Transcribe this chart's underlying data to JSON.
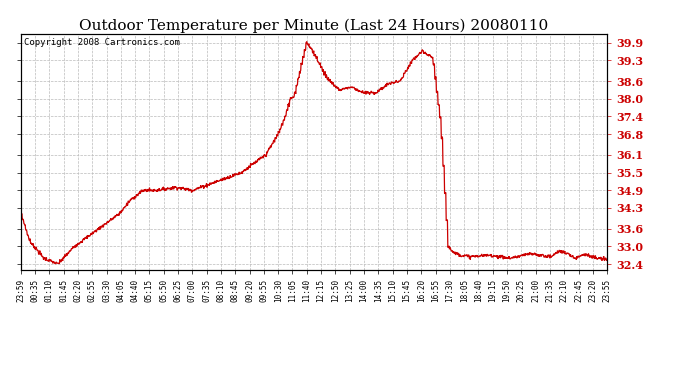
{
  "title": "Outdoor Temperature per Minute (Last 24 Hours) 20080110",
  "copyright": "Copyright 2008 Cartronics.com",
  "line_color": "#cc0000",
  "bg_color": "#ffffff",
  "grid_color": "#bbbbbb",
  "yticks": [
    32.4,
    33.0,
    33.6,
    34.3,
    34.9,
    35.5,
    36.1,
    36.8,
    37.4,
    38.0,
    38.6,
    39.3,
    39.9
  ],
  "xtick_labels": [
    "23:59",
    "00:35",
    "01:10",
    "01:45",
    "02:20",
    "02:55",
    "03:30",
    "04:05",
    "04:40",
    "05:15",
    "05:50",
    "06:25",
    "07:00",
    "07:35",
    "08:10",
    "08:45",
    "09:20",
    "09:55",
    "10:30",
    "11:05",
    "11:40",
    "12:15",
    "12:50",
    "13:25",
    "14:00",
    "14:35",
    "15:10",
    "15:45",
    "16:20",
    "16:55",
    "17:30",
    "18:05",
    "18:40",
    "19:15",
    "19:50",
    "20:25",
    "21:00",
    "21:35",
    "22:10",
    "22:45",
    "23:20",
    "23:55"
  ],
  "ylim": [
    32.2,
    40.2
  ],
  "xlim_n": 1440,
  "title_fontsize": 11,
  "copyright_fontsize": 6.5,
  "ytick_fontsize": 8,
  "xtick_fontsize": 5.5,
  "keypoints_x": [
    0,
    20,
    55,
    90,
    130,
    180,
    210,
    240,
    270,
    300,
    330,
    380,
    420,
    480,
    540,
    600,
    630,
    648,
    660,
    670,
    685,
    700,
    720,
    750,
    780,
    810,
    840,
    870,
    900,
    930,
    960,
    975,
    985,
    995,
    1010,
    1030,
    1048,
    1060,
    1080,
    1100,
    1150,
    1200,
    1250,
    1300,
    1320,
    1340,
    1360,
    1380,
    1410,
    1439
  ],
  "keypoints_y": [
    34.1,
    33.2,
    32.6,
    32.4,
    33.0,
    33.5,
    33.8,
    34.1,
    34.6,
    34.9,
    34.9,
    35.0,
    34.9,
    35.2,
    35.5,
    36.1,
    36.8,
    37.4,
    38.0,
    38.1,
    39.0,
    39.9,
    39.5,
    38.7,
    38.3,
    38.4,
    38.2,
    38.2,
    38.5,
    38.6,
    39.3,
    39.5,
    39.6,
    39.5,
    39.4,
    37.1,
    33.0,
    32.8,
    32.7,
    32.65,
    32.7,
    32.6,
    32.75,
    32.65,
    32.85,
    32.75,
    32.6,
    32.75,
    32.6,
    32.55
  ]
}
